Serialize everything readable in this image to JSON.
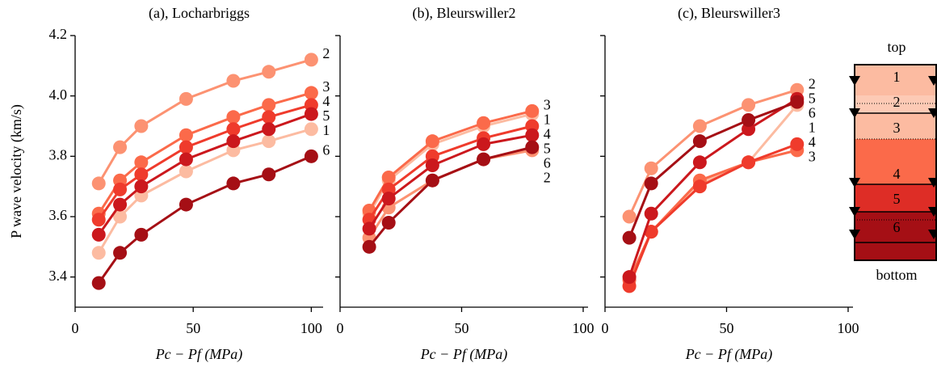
{
  "chart_data": [
    {
      "type": "line",
      "title": "(a), Locharbriggs",
      "y_label": "P wave velocity (km/s)",
      "x_label": "Pc − Pf (MPa)",
      "x": [
        10,
        19,
        28,
        47,
        67,
        82,
        100
      ],
      "xlim": [
        0,
        105
      ],
      "xticks": [
        0,
        50,
        100
      ],
      "ylim": [
        3.3,
        4.2
      ],
      "yticks": [
        3.4,
        3.6,
        3.8,
        {
          "value": 4,
          "label": "4.0"
        },
        4.2
      ],
      "ytick_labels": true,
      "series": [
        {
          "name": "1",
          "color": "#fcbba1",
          "values": [
            3.48,
            3.6,
            3.67,
            3.75,
            3.82,
            3.85,
            3.89
          ]
        },
        {
          "name": "2",
          "color": "#fc9272",
          "values": [
            3.71,
            3.83,
            3.9,
            3.99,
            4.05,
            4.08,
            4.12
          ]
        },
        {
          "name": "3",
          "color": "#fb6a4a",
          "values": [
            3.61,
            3.72,
            3.78,
            3.87,
            3.93,
            3.97,
            4.01
          ]
        },
        {
          "name": "4",
          "color": "#ef3b2c",
          "values": [
            3.59,
            3.69,
            3.74,
            3.83,
            3.89,
            3.93,
            3.97
          ]
        },
        {
          "name": "5",
          "color": "#cb181d",
          "values": [
            3.54,
            3.64,
            3.7,
            3.79,
            3.85,
            3.89,
            3.94
          ]
        },
        {
          "name": "6",
          "color": "#a50f15",
          "values": [
            3.38,
            3.48,
            3.54,
            3.64,
            3.71,
            3.74,
            3.8
          ]
        }
      ]
    },
    {
      "type": "line",
      "title": "(b), Bleurswiller2",
      "x_label": "Pc − Pf (MPa)",
      "x": [
        12,
        20,
        38,
        59,
        79
      ],
      "xlim": [
        0,
        102
      ],
      "xticks": [
        0,
        50,
        100
      ],
      "ylim": [
        3.3,
        4.2
      ],
      "yticks": [
        3.4,
        3.6,
        3.8,
        4,
        4.2
      ],
      "ytick_labels": false,
      "series": [
        {
          "name": "1",
          "color": "#fcbba1",
          "values": [
            3.61,
            3.72,
            3.84,
            3.9,
            3.94
          ]
        },
        {
          "name": "2",
          "color": "#fc9272",
          "values": [
            3.53,
            3.63,
            3.72,
            3.79,
            3.82
          ]
        },
        {
          "name": "3",
          "color": "#fb6a4a",
          "values": [
            3.62,
            3.73,
            3.85,
            3.91,
            3.95
          ]
        },
        {
          "name": "4",
          "color": "#ef3b2c",
          "values": [
            3.59,
            3.69,
            3.8,
            3.86,
            3.9
          ]
        },
        {
          "name": "5",
          "color": "#cb181d",
          "values": [
            3.56,
            3.66,
            3.77,
            3.84,
            3.87
          ]
        },
        {
          "name": "6",
          "color": "#a50f15",
          "values": [
            3.5,
            3.58,
            3.72,
            3.79,
            3.83
          ]
        }
      ]
    },
    {
      "type": "line",
      "title": "(c), Bleurswiller3",
      "x_label": "Pc − Pf (MPa)",
      "x": [
        10,
        19,
        39,
        59,
        79
      ],
      "xlim": [
        0,
        102
      ],
      "xticks": [
        0,
        50,
        100
      ],
      "ylim": [
        3.3,
        4.2
      ],
      "yticks": [
        3.4,
        3.6,
        3.8,
        4,
        4.2
      ],
      "ytick_labels": false,
      "series": [
        {
          "name": "1",
          "color": "#fcbba1",
          "values": [
            3.37,
            3.55,
            3.71,
            3.78,
            3.97
          ]
        },
        {
          "name": "2",
          "color": "#fc9272",
          "values": [
            3.6,
            3.76,
            3.9,
            3.97,
            4.02
          ]
        },
        {
          "name": "3",
          "color": "#fb6a4a",
          "values": [
            3.39,
            3.55,
            3.72,
            3.78,
            3.82
          ]
        },
        {
          "name": "4",
          "color": "#ef3b2c",
          "values": [
            3.37,
            3.55,
            3.7,
            3.78,
            3.84
          ]
        },
        {
          "name": "5",
          "color": "#cb181d",
          "values": [
            3.4,
            3.61,
            3.78,
            3.89,
            3.99
          ]
        },
        {
          "name": "6",
          "color": "#a50f15",
          "values": [
            3.53,
            3.71,
            3.85,
            3.92,
            3.98
          ]
        }
      ]
    }
  ],
  "layer_diagram": {
    "top": "top",
    "bottom": "bottom",
    "layers": [
      "1",
      "2",
      "3",
      "4",
      "5",
      "6"
    ]
  }
}
